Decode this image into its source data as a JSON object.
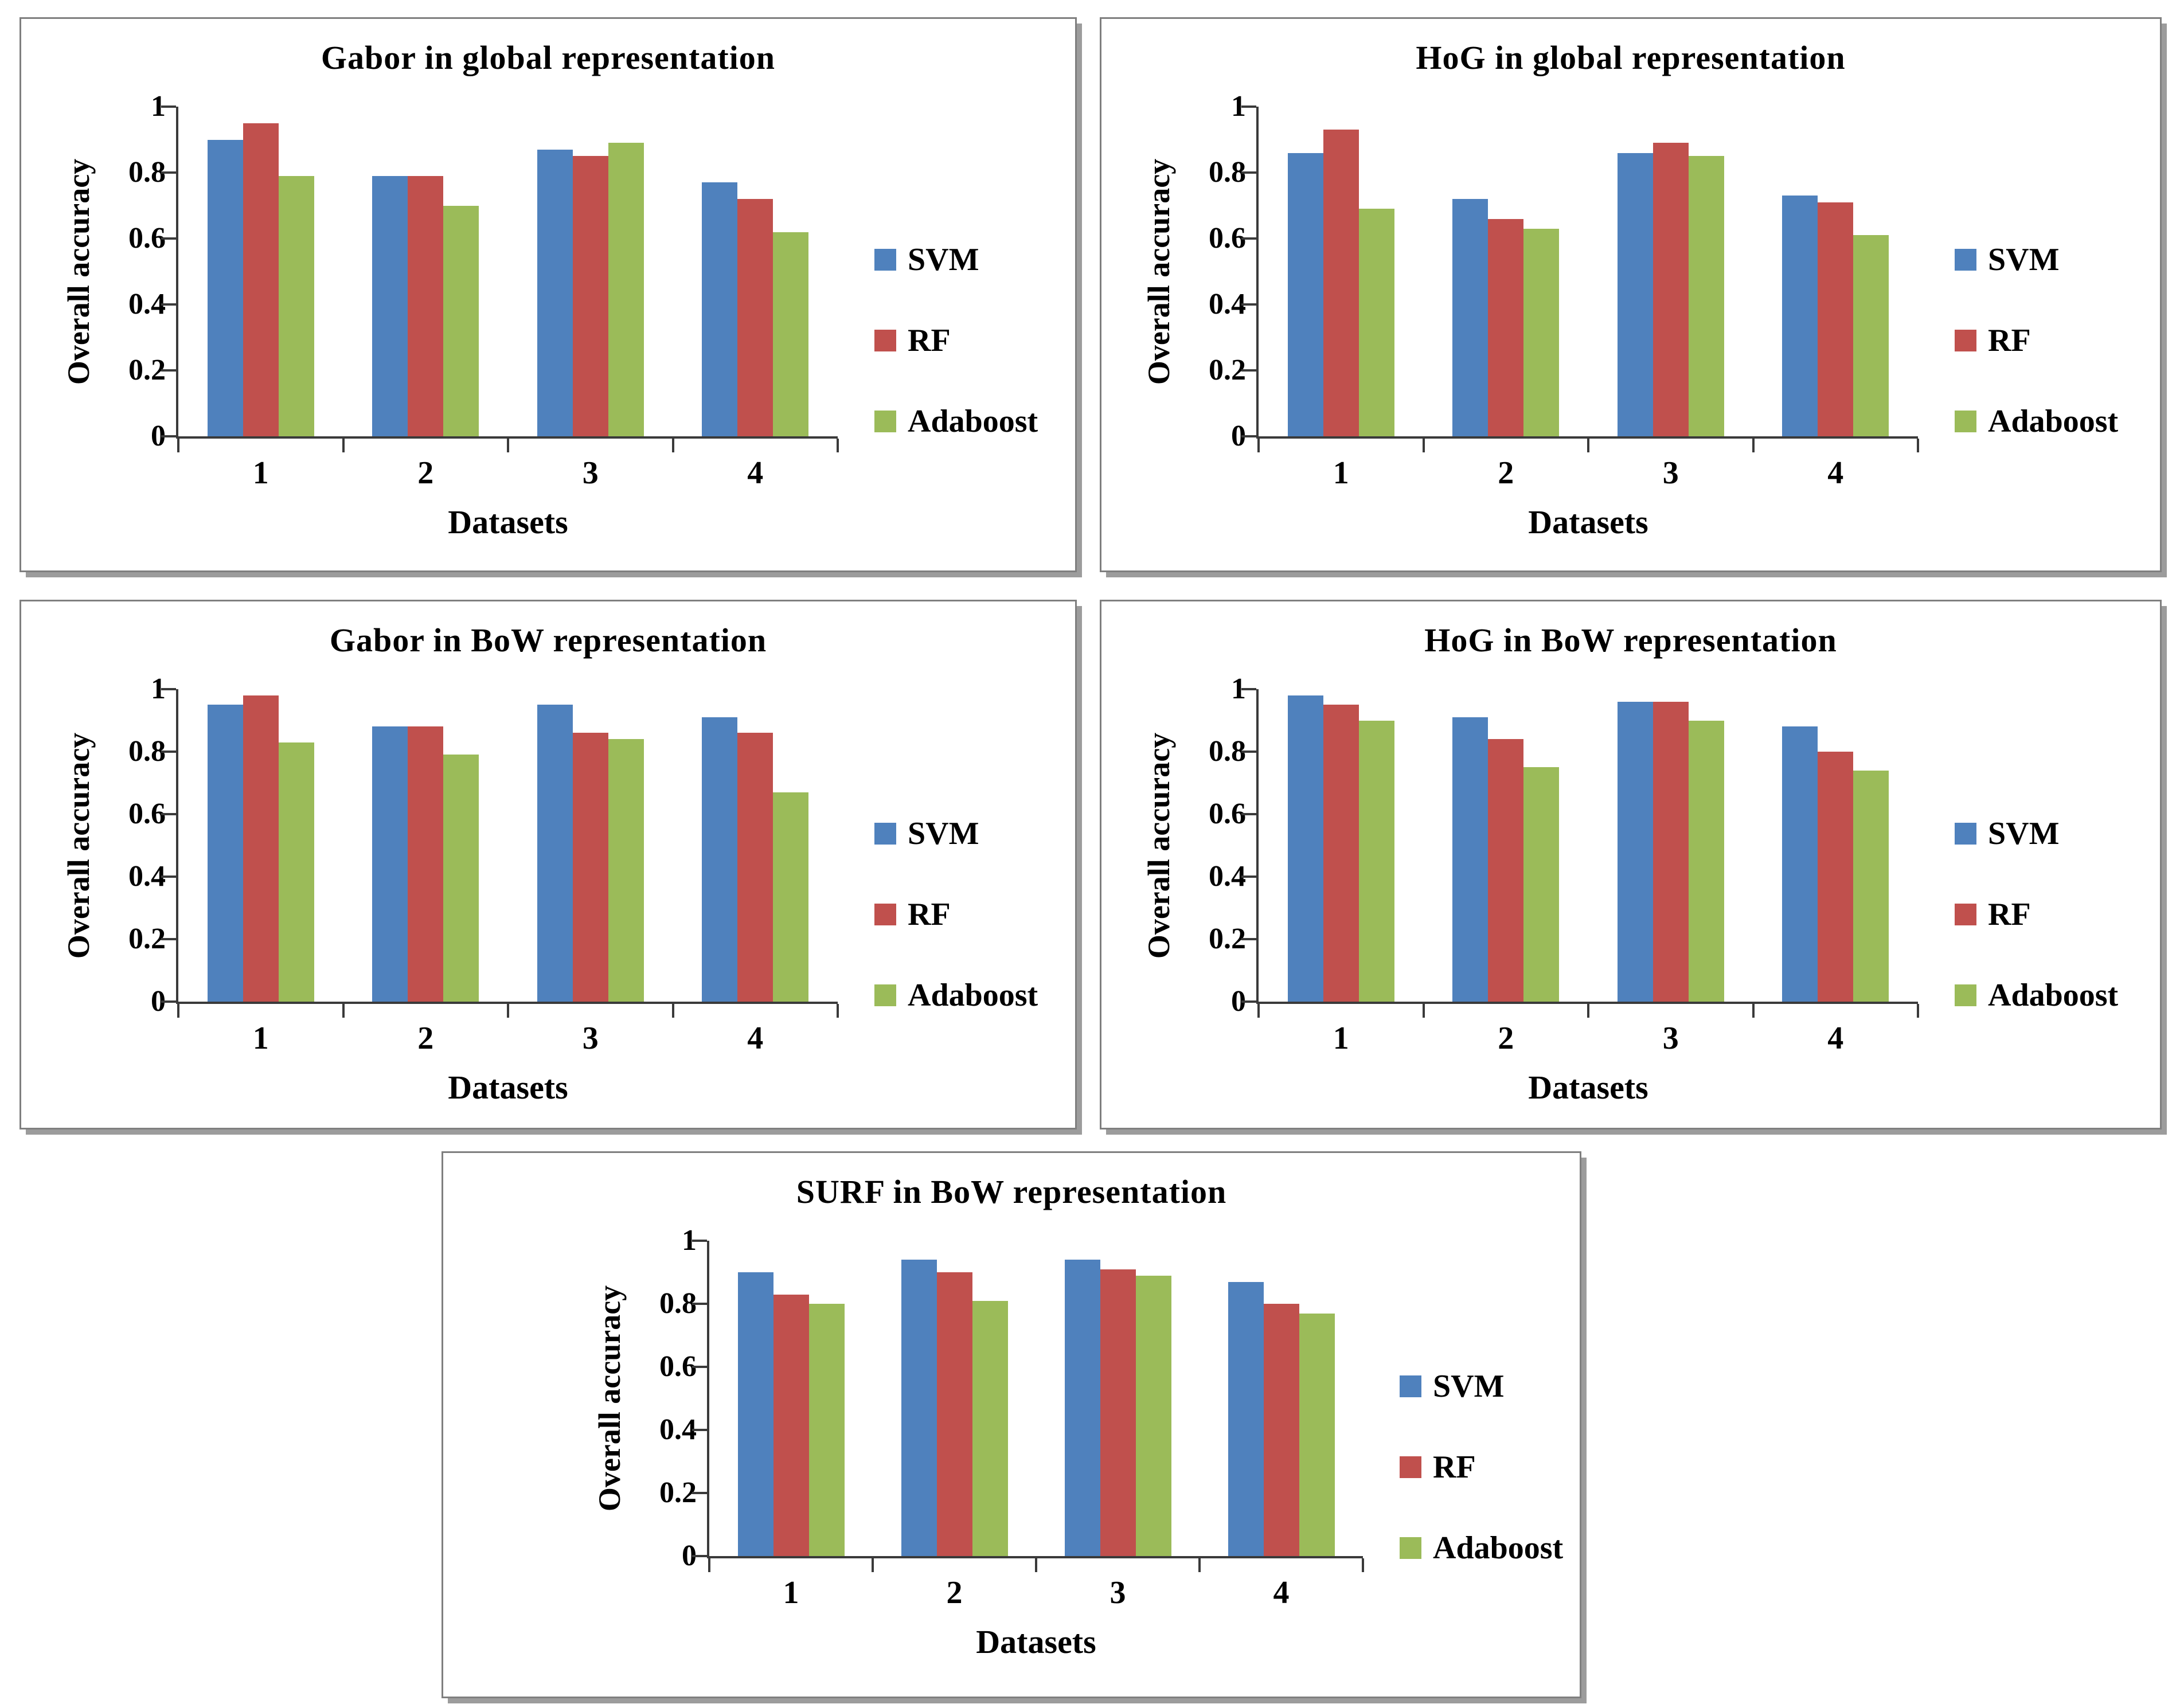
{
  "figure": {
    "y_axis_label": "Overall accuracy",
    "x_axis_label": "Datasets",
    "categories": [
      "1",
      "2",
      "3",
      "4"
    ],
    "y_ticks": [
      {
        "label": "0",
        "value": 0
      },
      {
        "label": "0.2",
        "value": 0.2
      },
      {
        "label": "0.4",
        "value": 0.4
      },
      {
        "label": "0.6",
        "value": 0.6
      },
      {
        "label": "0.8",
        "value": 0.8
      },
      {
        "label": "1",
        "value": 1
      }
    ],
    "legend": [
      {
        "name": "SVM",
        "color": "#4F81BD"
      },
      {
        "name": "RF",
        "color": "#C0504D"
      },
      {
        "name": "Adaboost",
        "color": "#9BBB59"
      }
    ],
    "axis_color": "#3a3a3a",
    "panel_border_color": "#7f7f7f"
  },
  "chart_data": [
    {
      "type": "bar",
      "title": "Gabor in global representation",
      "xlabel": "Datasets",
      "ylabel": "Overall accuracy",
      "ylim": [
        0,
        1
      ],
      "grid": false,
      "legend_position": "right",
      "categories": [
        "1",
        "2",
        "3",
        "4"
      ],
      "series": [
        {
          "name": "SVM",
          "color": "#4F81BD",
          "values": [
            0.9,
            0.79,
            0.87,
            0.77
          ]
        },
        {
          "name": "RF",
          "color": "#C0504D",
          "values": [
            0.95,
            0.79,
            0.85,
            0.72
          ]
        },
        {
          "name": "Adaboost",
          "color": "#9BBB59",
          "values": [
            0.79,
            0.7,
            0.89,
            0.62
          ]
        }
      ]
    },
    {
      "type": "bar",
      "title": "HoG in global representation",
      "xlabel": "Datasets",
      "ylabel": "Overall accuracy",
      "ylim": [
        0,
        1
      ],
      "grid": false,
      "legend_position": "right",
      "categories": [
        "1",
        "2",
        "3",
        "4"
      ],
      "series": [
        {
          "name": "SVM",
          "color": "#4F81BD",
          "values": [
            0.86,
            0.72,
            0.86,
            0.73
          ]
        },
        {
          "name": "RF",
          "color": "#C0504D",
          "values": [
            0.93,
            0.66,
            0.89,
            0.71
          ]
        },
        {
          "name": "Adaboost",
          "color": "#9BBB59",
          "values": [
            0.69,
            0.63,
            0.85,
            0.61
          ]
        }
      ]
    },
    {
      "type": "bar",
      "title": "Gabor in BoW representation",
      "xlabel": "Datasets",
      "ylabel": "Overall accuracy",
      "ylim": [
        0,
        1
      ],
      "grid": false,
      "legend_position": "right",
      "categories": [
        "1",
        "2",
        "3",
        "4"
      ],
      "series": [
        {
          "name": "SVM",
          "color": "#4F81BD",
          "values": [
            0.95,
            0.88,
            0.95,
            0.91
          ]
        },
        {
          "name": "RF",
          "color": "#C0504D",
          "values": [
            0.98,
            0.88,
            0.86,
            0.86
          ]
        },
        {
          "name": "Adaboost",
          "color": "#9BBB59",
          "values": [
            0.83,
            0.79,
            0.84,
            0.67
          ]
        }
      ]
    },
    {
      "type": "bar",
      "title": "HoG in BoW representation",
      "xlabel": "Datasets",
      "ylabel": "Overall accuracy",
      "ylim": [
        0,
        1
      ],
      "grid": false,
      "legend_position": "right",
      "categories": [
        "1",
        "2",
        "3",
        "4"
      ],
      "series": [
        {
          "name": "SVM",
          "color": "#4F81BD",
          "values": [
            0.98,
            0.91,
            0.96,
            0.88
          ]
        },
        {
          "name": "RF",
          "color": "#C0504D",
          "values": [
            0.95,
            0.84,
            0.96,
            0.8
          ]
        },
        {
          "name": "Adaboost",
          "color": "#9BBB59",
          "values": [
            0.9,
            0.75,
            0.9,
            0.74
          ]
        }
      ]
    },
    {
      "type": "bar",
      "title": "SURF in BoW representation",
      "xlabel": "Datasets",
      "ylabel": "Overall accuracy",
      "ylim": [
        0,
        1
      ],
      "grid": false,
      "legend_position": "right",
      "categories": [
        "1",
        "2",
        "3",
        "4"
      ],
      "series": [
        {
          "name": "SVM",
          "color": "#4F81BD",
          "values": [
            0.9,
            0.94,
            0.94,
            0.87
          ]
        },
        {
          "name": "RF",
          "color": "#C0504D",
          "values": [
            0.83,
            0.9,
            0.91,
            0.8
          ]
        },
        {
          "name": "Adaboost",
          "color": "#9BBB59",
          "values": [
            0.8,
            0.81,
            0.89,
            0.77
          ]
        }
      ]
    }
  ]
}
